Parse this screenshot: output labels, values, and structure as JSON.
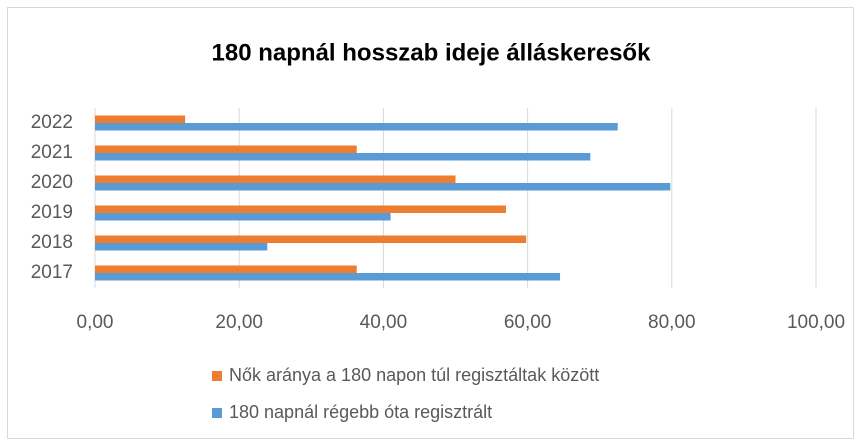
{
  "chart_data": {
    "type": "barh",
    "title": "180 napnál hosszab ideje álláskeresők",
    "categories": [
      "2017",
      "2018",
      "2019",
      "2020",
      "2021",
      "2022"
    ],
    "series": [
      {
        "name": "Nők aránya a 180 napon túl regisztáltak között",
        "color": "#ed7d31",
        "values": [
          36.3,
          59.8,
          57.0,
          50.0,
          36.3,
          12.5
        ]
      },
      {
        "name": "180 napnál régebb óta regisztrált",
        "color": "#5b9bd5",
        "values": [
          64.5,
          23.9,
          41.0,
          79.8,
          68.7,
          72.5
        ]
      }
    ],
    "xlim": [
      0,
      100
    ],
    "xticks": [
      {
        "value": 0,
        "label": "0,00"
      },
      {
        "value": 20,
        "label": "20,00"
      },
      {
        "value": 40,
        "label": "40,00"
      },
      {
        "value": 60,
        "label": "60,00"
      },
      {
        "value": 80,
        "label": "80,00"
      },
      {
        "value": 100,
        "label": "100,00"
      }
    ],
    "grid": true
  }
}
